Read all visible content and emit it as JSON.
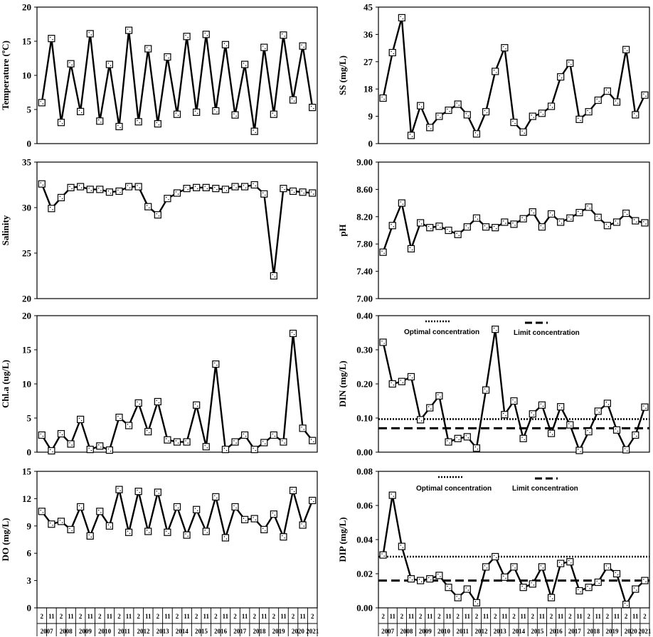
{
  "x_axis": {
    "sample_labels": [
      "2",
      "11",
      "2",
      "11",
      "2",
      "11",
      "2",
      "11",
      "2",
      "11",
      "2",
      "11",
      "2",
      "11",
      "2",
      "11",
      "2",
      "11",
      "2",
      "11",
      "2",
      "11",
      "2",
      "11",
      "2",
      "11",
      "2",
      "11",
      "2"
    ],
    "year_labels": [
      "2007",
      "2008",
      "2009",
      "2010",
      "2011",
      "2012",
      "2013",
      "2014",
      "2015",
      "2016",
      "2017",
      "2018",
      "2019",
      "2020",
      "2021"
    ]
  },
  "legend": {
    "optimal_label": "Optimal concentration",
    "limit_label": "Limit concentration"
  },
  "chart_data": [
    {
      "type": "line",
      "ylabel": "Temperature (ºC)",
      "ylim": [
        0,
        20
      ],
      "yticks": [
        0,
        5,
        10,
        15,
        20
      ],
      "ytick_labels": [
        "0",
        "5",
        "10",
        "15",
        "20"
      ],
      "values": [
        6.0,
        15.4,
        3.1,
        11.7,
        4.7,
        16.1,
        3.3,
        11.6,
        2.5,
        16.6,
        3.2,
        13.9,
        2.9,
        12.7,
        4.3,
        15.7,
        4.6,
        16.0,
        4.8,
        14.5,
        4.2,
        11.6,
        1.8,
        14.1,
        4.3,
        15.9,
        6.4,
        14.3,
        5.3
      ]
    },
    {
      "type": "line",
      "ylabel": "SS (mg/L)",
      "ylim": [
        0,
        45
      ],
      "yticks": [
        0,
        9,
        18,
        27,
        36,
        45
      ],
      "ytick_labels": [
        "0",
        "9",
        "18",
        "27",
        "36",
        "45"
      ],
      "values": [
        15,
        30,
        41.5,
        2.7,
        12.5,
        5.3,
        9,
        11,
        13,
        9.5,
        3.2,
        10.5,
        23.8,
        31.6,
        7,
        3.8,
        9,
        10,
        12.3,
        22,
        26.5,
        8,
        10.5,
        14.3,
        17.3,
        13.7,
        31,
        9.5,
        16
      ]
    },
    {
      "type": "line",
      "ylabel": "Salinity",
      "ylim": [
        20,
        35
      ],
      "yticks": [
        20,
        25,
        30,
        35
      ],
      "ytick_labels": [
        "20",
        "25",
        "30",
        "35"
      ],
      "values": [
        32.6,
        29.9,
        31.1,
        32.2,
        32.3,
        32.0,
        32.0,
        31.7,
        31.8,
        32.3,
        32.3,
        30.1,
        29.2,
        31.0,
        31.6,
        32.1,
        32.2,
        32.2,
        32.1,
        32.0,
        32.3,
        32.3,
        32.5,
        31.5,
        22.5,
        32.1,
        31.8,
        31.7,
        31.6
      ]
    },
    {
      "type": "line",
      "ylabel": "pH",
      "ylim": [
        7.0,
        9.0
      ],
      "yticks": [
        7.0,
        7.4,
        7.8,
        8.2,
        8.6,
        9.0
      ],
      "ytick_labels": [
        "7.00",
        "7.40",
        "7.80",
        "8.20",
        "8.60",
        "9.00"
      ],
      "values": [
        7.68,
        8.07,
        8.4,
        7.73,
        8.11,
        8.04,
        8.06,
        8.0,
        7.94,
        8.05,
        8.18,
        8.05,
        8.04,
        8.12,
        8.09,
        8.17,
        8.27,
        8.05,
        8.24,
        8.12,
        8.18,
        8.26,
        8.34,
        8.19,
        8.07,
        8.12,
        8.25,
        8.14,
        8.11
      ]
    },
    {
      "type": "line",
      "ylabel": "Chl.a (ug/L)",
      "ylim": [
        0,
        20
      ],
      "yticks": [
        0,
        5,
        10,
        15,
        20
      ],
      "ytick_labels": [
        "0",
        "5",
        "10",
        "15",
        "20"
      ],
      "values": [
        2.5,
        0.2,
        2.7,
        1.2,
        4.8,
        0.4,
        0.9,
        0.3,
        5.1,
        3.9,
        7.2,
        3.0,
        7.4,
        1.8,
        1.5,
        1.5,
        6.9,
        0.8,
        12.9,
        0.4,
        1.5,
        2.5,
        0.4,
        1.4,
        2.5,
        1.5,
        17.4,
        3.5,
        1.7
      ]
    },
    {
      "type": "line",
      "ylabel": "DIN (mg/L)",
      "ylim": [
        0,
        0.4
      ],
      "yticks": [
        0,
        0.1,
        0.2,
        0.3,
        0.4
      ],
      "ytick_labels": [
        "0.00",
        "0.10",
        "0.20",
        "0.30",
        "0.40"
      ],
      "values": [
        0.322,
        0.2,
        0.207,
        0.221,
        0.095,
        0.13,
        0.165,
        0.03,
        0.04,
        0.045,
        0.012,
        0.182,
        0.36,
        0.11,
        0.15,
        0.04,
        0.112,
        0.138,
        0.055,
        0.133,
        0.08,
        0.005,
        0.06,
        0.12,
        0.143,
        0.065,
        0.007,
        0.05,
        0.132
      ],
      "optimal_line": 0.097,
      "limit_line": 0.07
    },
    {
      "type": "line",
      "ylabel": "DO (mg/L)",
      "ylim": [
        0,
        15
      ],
      "yticks": [
        0,
        3,
        6,
        9,
        12,
        15
      ],
      "ytick_labels": [
        "0",
        "3",
        "6",
        "9",
        "12",
        "15"
      ],
      "values": [
        10.6,
        9.2,
        9.5,
        8.6,
        11.1,
        7.9,
        10.6,
        9.0,
        13.0,
        8.3,
        12.8,
        8.4,
        12.7,
        8.3,
        11.1,
        8.0,
        10.8,
        8.4,
        12.2,
        7.7,
        11.1,
        9.7,
        9.8,
        8.6,
        10.3,
        7.8,
        12.9,
        9.1,
        11.8
      ]
    },
    {
      "type": "line",
      "ylabel": "DIP (mg/L)",
      "ylim": [
        0,
        0.08
      ],
      "yticks": [
        0,
        0.02,
        0.04,
        0.06,
        0.08
      ],
      "ytick_labels": [
        "0.00",
        "0.02",
        "0.04",
        "0.06",
        "0.08"
      ],
      "values": [
        0.031,
        0.066,
        0.036,
        0.017,
        0.016,
        0.017,
        0.019,
        0.012,
        0.006,
        0.011,
        0.003,
        0.024,
        0.03,
        0.018,
        0.024,
        0.012,
        0.014,
        0.024,
        0.006,
        0.026,
        0.027,
        0.01,
        0.012,
        0.015,
        0.024,
        0.02,
        0.002,
        0.011,
        0.016
      ],
      "optimal_line": 0.03,
      "limit_line": 0.016
    }
  ]
}
